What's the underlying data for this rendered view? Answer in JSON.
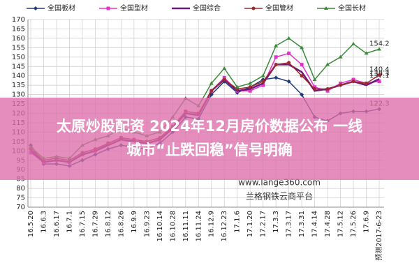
{
  "chart_data": {
    "type": "line",
    "categories": [
      "16.5.20",
      "16.6.3",
      "16.6.17",
      "16.7.1",
      "16.7.15",
      "16.7.29",
      "16.8.12",
      "16.8.26",
      "16.9.9",
      "16.9.23",
      "16.10.14",
      "16.10.28",
      "16.11.11",
      "16.11.24",
      "16.12.9",
      "16.12.23",
      "17.1.6",
      "17.1.20",
      "17.2.17",
      "17.3.3",
      "17.3.17",
      "17.3.31",
      "17.4.14",
      "17.4.28",
      "17.5.12",
      "17.5.26",
      "17.6.9",
      "预测2017-6-23"
    ],
    "series": [
      {
        "name": "全国板材",
        "color": "#1f3a7a",
        "marker": "diamond",
        "values": [
          103,
          93,
          93,
          92,
          95,
          98,
          101,
          103,
          102,
          101,
          104,
          110,
          118,
          117,
          130,
          137,
          131,
          134,
          138,
          139,
          137,
          130,
          118,
          116,
          120,
          121,
          121,
          122.3
        ]
      },
      {
        "name": "全国型材",
        "color": "#e033c8",
        "marker": "square",
        "values": [
          99,
          94,
          95,
          94,
          98,
          100,
          104,
          107,
          106,
          104,
          106,
          113,
          121,
          120,
          132,
          139,
          132,
          132,
          135,
          150,
          152,
          146,
          134,
          132,
          136,
          138,
          136,
          137.1
        ]
      },
      {
        "name": "全国综合",
        "color": "#6a1a78",
        "marker": "none",
        "values": [
          100,
          94,
          95,
          94,
          98,
          100,
          103,
          106,
          105,
          104,
          106,
          112,
          120,
          119,
          132,
          138,
          132,
          133,
          136,
          146,
          146,
          142,
          132,
          133,
          135,
          137,
          135,
          138.3
        ]
      },
      {
        "name": "全国管材",
        "color": "#a0282a",
        "marker": "circle",
        "values": [
          101,
          95,
          96,
          95,
          99,
          101,
          104,
          107,
          106,
          105,
          107,
          113,
          121,
          120,
          132,
          138,
          133,
          134,
          137,
          146,
          147,
          140,
          133,
          133,
          135,
          137,
          136,
          140.4
        ]
      },
      {
        "name": "全国长材",
        "color": "#3a8a3a",
        "marker": "triangle",
        "values": [
          102,
          96,
          97,
          96,
          103,
          106,
          108,
          112,
          110,
          108,
          110,
          118,
          128,
          124,
          136,
          144,
          134,
          136,
          140,
          156,
          160,
          155,
          138,
          146,
          150,
          157,
          152,
          154.2
        ]
      }
    ],
    "ylim": [
      70,
      170
    ],
    "yticks": [
      70,
      75,
      80,
      85,
      90,
      95,
      100,
      105,
      110,
      115,
      120,
      125,
      130,
      135,
      140,
      145,
      150,
      155,
      160,
      165,
      170
    ],
    "grid": true,
    "legend": "top"
  },
  "watermark": {
    "url": "www.lange360.com",
    "platform": "兰格钢铁云商平台"
  },
  "overlay": {
    "line1": "太原炒股配资 2024年12月房价数据公布 一线",
    "line2": "城市“止跌回稳”信号明确"
  }
}
